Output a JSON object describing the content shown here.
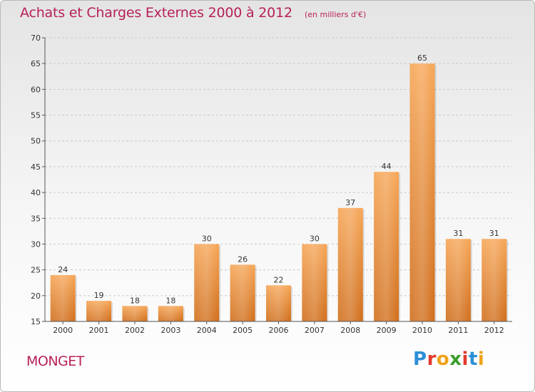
{
  "header": {
    "title": "Achats et Charges Externes 2000 à 2012",
    "subtitle": "(en milliers d'€)"
  },
  "footer": {
    "commune": "MONGET",
    "logo_letters": [
      "P",
      "r",
      "o",
      "x",
      "i",
      "t",
      "i"
    ],
    "logo_colors": [
      "#2d8fd6",
      "#e23a2b",
      "#f0a318",
      "#3b9d2c",
      "#e23a2b",
      "#2d8fd6",
      "#f0a318"
    ]
  },
  "chart_data": {
    "type": "bar",
    "title": "Achats et Charges Externes 2000 à 2012",
    "subtitle": "(en milliers d'€)",
    "categories": [
      "2000",
      "2001",
      "2002",
      "2003",
      "2004",
      "2005",
      "2006",
      "2007",
      "2008",
      "2009",
      "2010",
      "2011",
      "2012"
    ],
    "values": [
      24,
      19,
      18,
      18,
      30,
      26,
      22,
      30,
      37,
      44,
      65,
      31,
      31
    ],
    "xlabel": "",
    "ylabel": "",
    "ylim": [
      15,
      70
    ],
    "yticks": [
      15,
      20,
      25,
      30,
      35,
      40,
      45,
      50,
      55,
      60,
      65,
      70
    ],
    "grid": "horizontal-dashed",
    "bar_color": "#f29a45",
    "bar_color_dark": "#d26f1c"
  }
}
